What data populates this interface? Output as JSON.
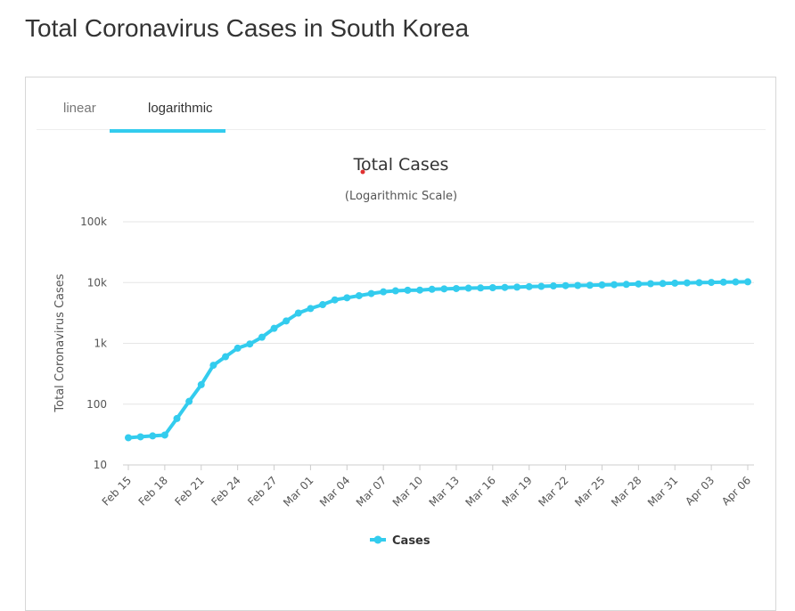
{
  "page": {
    "title": "Total Coronavirus Cases in South Korea"
  },
  "tabs": [
    {
      "label": "linear",
      "active": false
    },
    {
      "label": "logarithmic",
      "active": true
    }
  ],
  "colors": {
    "series": "#33ccee",
    "accent": "#33ccee"
  },
  "chart_data": {
    "type": "line",
    "title": "Total Cases",
    "subtitle": "(Logarithmic Scale)",
    "ylabel": "Total Coronavirus Cases",
    "xlabel": "",
    "y_scale": "log",
    "ylim": [
      10,
      100000
    ],
    "y_ticks": [
      "10",
      "100",
      "1k",
      "10k",
      "100k"
    ],
    "y_tick_values": [
      10,
      100,
      1000,
      10000,
      100000
    ],
    "grid": true,
    "legend_position": "bottom",
    "x_tick_labels": [
      "Feb 15",
      "Feb 18",
      "Feb 21",
      "Feb 24",
      "Feb 27",
      "Mar 01",
      "Mar 04",
      "Mar 07",
      "Mar 10",
      "Mar 13",
      "Mar 16",
      "Mar 19",
      "Mar 22",
      "Mar 25",
      "Mar 28",
      "Mar 31",
      "Apr 03",
      "Apr 06"
    ],
    "categories": [
      "Feb 15",
      "Feb 16",
      "Feb 17",
      "Feb 18",
      "Feb 19",
      "Feb 20",
      "Feb 21",
      "Feb 22",
      "Feb 23",
      "Feb 24",
      "Feb 25",
      "Feb 26",
      "Feb 27",
      "Feb 28",
      "Feb 29",
      "Mar 01",
      "Mar 02",
      "Mar 03",
      "Mar 04",
      "Mar 05",
      "Mar 06",
      "Mar 07",
      "Mar 08",
      "Mar 09",
      "Mar 10",
      "Mar 11",
      "Mar 12",
      "Mar 13",
      "Mar 14",
      "Mar 15",
      "Mar 16",
      "Mar 17",
      "Mar 18",
      "Mar 19",
      "Mar 20",
      "Mar 21",
      "Mar 22",
      "Mar 23",
      "Mar 24",
      "Mar 25",
      "Mar 26",
      "Mar 27",
      "Mar 28",
      "Mar 29",
      "Mar 30",
      "Mar 31",
      "Apr 01",
      "Apr 02",
      "Apr 03",
      "Apr 04",
      "Apr 05",
      "Apr 06"
    ],
    "series": [
      {
        "name": "Cases",
        "values": [
          28,
          29,
          30,
          31,
          58,
          111,
          209,
          436,
          602,
          833,
          977,
          1261,
          1766,
          2337,
          3150,
          3736,
          4335,
          5186,
          5621,
          6088,
          6593,
          7041,
          7313,
          7478,
          7513,
          7755,
          7869,
          7979,
          8086,
          8162,
          8236,
          8320,
          8413,
          8565,
          8652,
          8799,
          8897,
          8961,
          9037,
          9137,
          9241,
          9332,
          9478,
          9583,
          9661,
          9786,
          9887,
          9976,
          10062,
          10156,
          10237,
          10284
        ]
      }
    ]
  }
}
